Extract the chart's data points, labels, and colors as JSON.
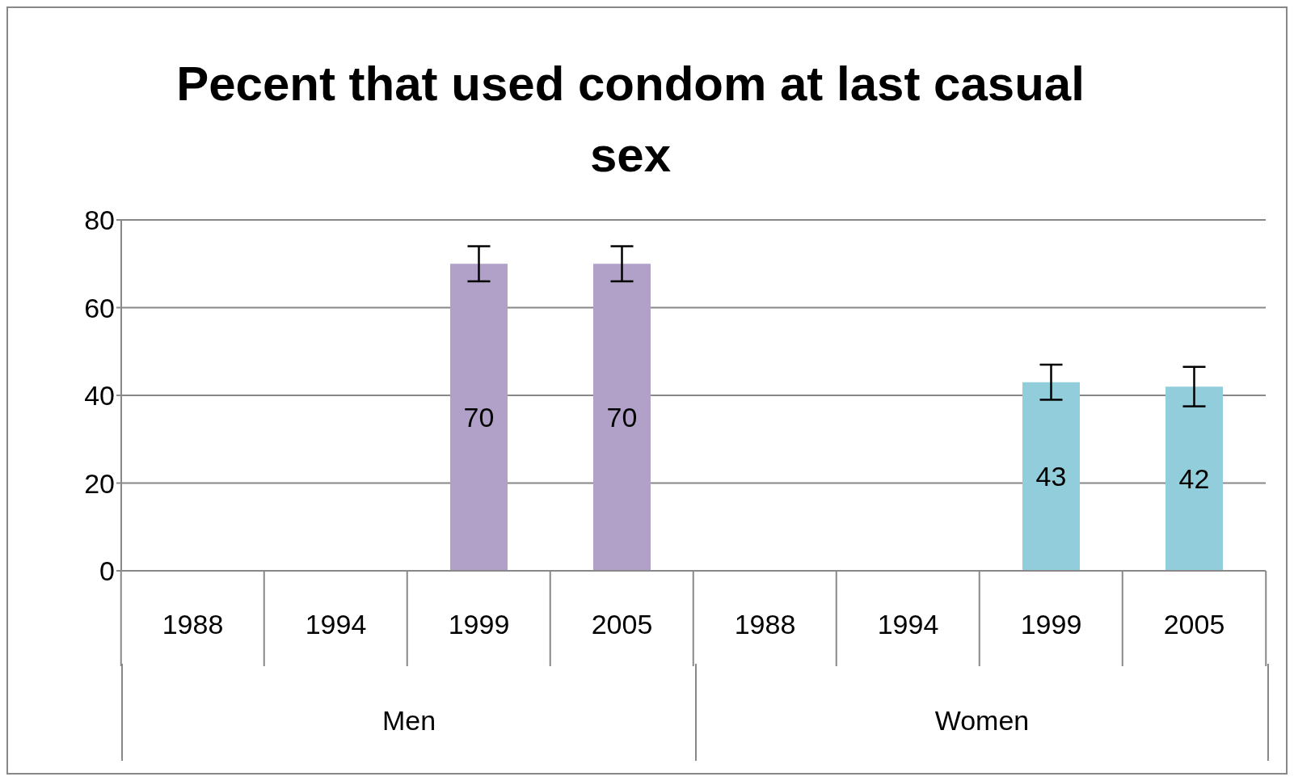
{
  "chart_data": {
    "type": "bar",
    "title": "Pecent that used condom at last casual sex",
    "categories": [
      "1988",
      "1994",
      "1999",
      "2005",
      "1988",
      "1994",
      "1999",
      "2005"
    ],
    "values": [
      null,
      null,
      70,
      70,
      null,
      null,
      43,
      42
    ],
    "colors": [
      "#b1a0c7",
      "#b1a0c7",
      "#b1a0c7",
      "#b1a0c7",
      "#92cddc",
      "#92cddc",
      "#92cddc",
      "#92cddc"
    ],
    "errors": [
      null,
      null,
      4,
      4,
      null,
      null,
      4,
      4.5
    ],
    "annotations": [
      "Men",
      "Women"
    ],
    "ylim": [
      0,
      80
    ],
    "yticks": [
      0,
      20,
      40,
      60,
      80
    ],
    "grid": "y",
    "data_labels": true
  }
}
